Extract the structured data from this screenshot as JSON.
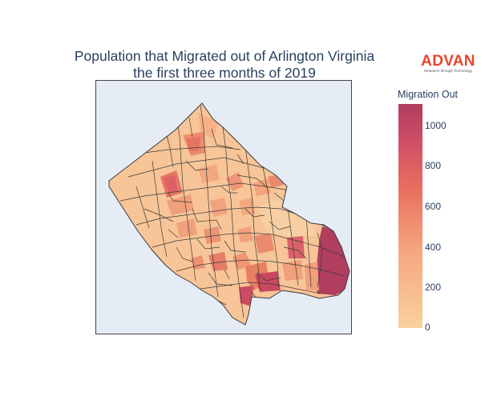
{
  "title": {
    "line1": "Population that Migrated out of Arlington Virginia",
    "line2": "the first three months of 2019"
  },
  "logo": {
    "word": "ADVAN",
    "tagline": "Research through Technology"
  },
  "colorbar": {
    "title": "Migration Out",
    "ticks": [
      "1000",
      "800",
      "600",
      "400",
      "200",
      "0"
    ],
    "min": 0,
    "max": 1100,
    "colors": [
      "#f9d29c",
      "#f6a57e",
      "#e8705e",
      "#cc4c66",
      "#b13d5f"
    ]
  },
  "map": {
    "background": "#e5ecf6",
    "border_color": "#444444",
    "region": "Arlington County, Virginia",
    "outline_color": "#3b3b3b"
  }
}
